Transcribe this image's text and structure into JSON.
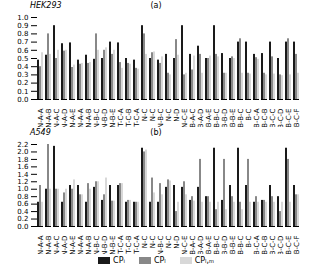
{
  "chart_data": [
    {
      "type": "bar",
      "title": "(a)",
      "subtitle": "HEK293",
      "categories": [
        "N-A-A",
        "N-A-B",
        "N-A-C",
        "N-A-D",
        "N-A-E",
        "N-A-A",
        "N-A-B",
        "N-B-C",
        "N-B-D",
        "N-B-E",
        "T-C-A",
        "T-C-B",
        "T-C-A",
        "N-C",
        "N-C",
        "N-B-C",
        "N-C",
        "N-D",
        "N-C-E",
        "B-A-C",
        "B-A-D",
        "B-A-E",
        "B-B-C",
        "B-B-D",
        "B-B-E",
        "B-B-C",
        "B-C",
        "B-C-A",
        "B-C-B",
        "B-C-C",
        "B-C-D",
        "B-C-E",
        "B-C-F"
      ],
      "series": [
        {
          "name": "CPᵢ",
          "color": "#1a1a1a",
          "values": [
            0.48,
            0.54,
            0.9,
            0.68,
            0.69,
            0.48,
            0.54,
            0.49,
            0.5,
            0.7,
            0.69,
            0.5,
            0.48,
            0.9,
            0.5,
            0.48,
            0.55,
            0.5,
            0.9,
            0.55,
            0.65,
            0.5,
            0.9,
            0.56,
            0.5,
            0.7,
            0.7,
            0.55,
            0.56,
            0.7,
            0.5,
            0.7,
            0.7
          ]
        },
        {
          "name": "CPₗ",
          "color": "#888888",
          "values": [
            0.4,
            0.8,
            0.5,
            0.59,
            0.39,
            0.43,
            0.44,
            0.8,
            0.6,
            0.55,
            0.45,
            0.44,
            0.38,
            0.8,
            0.57,
            0.44,
            0.32,
            0.73,
            0.3,
            0.36,
            0.55,
            0.5,
            0.55,
            0.32,
            0.52,
            0.74,
            0.32,
            0.51,
            0.32,
            0.52,
            0.3,
            0.74,
            0.55
          ]
        },
        {
          "name": "CPₗ,ₘ",
          "color": "#d8d8d8",
          "values": [
            0.57,
            0.55,
            0.6,
            0.6,
            0.42,
            0.44,
            0.45,
            0.6,
            0.63,
            0.6,
            0.38,
            0.43,
            0.37,
            0.55,
            0.58,
            0.52,
            0.3,
            0.54,
            0.32,
            0.53,
            0.32,
            0.53,
            0.52,
            0.32,
            0.5,
            0.32,
            0.31,
            0.49,
            0.3,
            0.31,
            0.29,
            0.3,
            0.32
          ]
        }
      ],
      "ylim": [
        0,
        1.0
      ],
      "yticks": [
        {
          "value": 0,
          "label": "0.0"
        },
        0.1,
        0.2,
        0.3,
        0.4,
        0.5,
        0.6,
        0.7,
        0.8,
        0.9,
        {
          "value": 1.0,
          "label": "1.0"
        }
      ]
    },
    {
      "type": "bar",
      "title": "(b)",
      "subtitle": "A549",
      "categories": [
        "N-A-A",
        "N-A-B",
        "N-A-C",
        "N-A-D",
        "N-A-E",
        "N-A-A",
        "N-A-B",
        "N-B-C",
        "N-B-D",
        "N-B-E",
        "T-C-A",
        "T-C-B",
        "T-C-A",
        "N-C",
        "N-C",
        "N-B-C",
        "N-C",
        "N-D",
        "N-C-E",
        "B-A-C",
        "B-A-D",
        "B-A-E",
        "B-B-C",
        "B-B-D",
        "B-B-E",
        "B-B-C",
        "B-C",
        "B-C-A",
        "B-C-B",
        "B-C-C",
        "B-C-D",
        "B-C-E",
        "B-C-F"
      ],
      "series": [
        {
          "name": "CPᵢ",
          "color": "#1a1a1a",
          "values": [
            0.65,
            1.0,
            2.15,
            0.65,
            1.1,
            1.1,
            0.65,
            1.05,
            0.7,
            1.1,
            1.1,
            0.65,
            0.65,
            2.1,
            0.65,
            0.65,
            1.05,
            1.1,
            1.05,
            0.7,
            1.05,
            0.8,
            2.1,
            0.7,
            1.1,
            2.1,
            1.1,
            0.65,
            0.7,
            1.1,
            0.8,
            2.1,
            1.1
          ]
        },
        {
          "name": "CPₗ",
          "color": "#888888",
          "values": [
            1.1,
            2.2,
            1.0,
            0.9,
            1.0,
            0.85,
            1.15,
            1.2,
            0.85,
            0.68,
            1.15,
            0.7,
            0.65,
            2.0,
            1.3,
            1.15,
            1.25,
            0.4,
            1.2,
            0.8,
            1.8,
            0.8,
            0.45,
            1.8,
            0.8,
            0.65,
            1.8,
            0.8,
            0.7,
            0.8,
            0.4,
            1.8,
            0.85
          ]
        },
        {
          "name": "CPₗ,ₘ",
          "color": "#d8d8d8",
          "values": [
            0.65,
            1.0,
            1.0,
            1.0,
            1.25,
            0.85,
            1.0,
            1.2,
            1.3,
            0.68,
            1.15,
            0.7,
            0.65,
            2.05,
            0.9,
            0.85,
            1.22,
            0.65,
            0.85,
            0.68,
            0.65,
            0.65,
            0.65,
            0.45,
            0.65,
            0.45,
            0.65,
            0.65,
            0.65,
            0.65,
            0.65,
            0.65,
            0.85
          ]
        }
      ],
      "ylim": [
        0,
        2.2
      ],
      "yticks": [
        {
          "value": 0,
          "label": "0.0"
        },
        0.2,
        0.4,
        0.6,
        0.8,
        {
          "value": 1.0,
          "label": "1.0"
        },
        1.2,
        1.4,
        1.6,
        1.8,
        {
          "value": 2.0,
          "label": "2.0"
        },
        2.2
      ],
      "legend": "bottom"
    }
  ]
}
